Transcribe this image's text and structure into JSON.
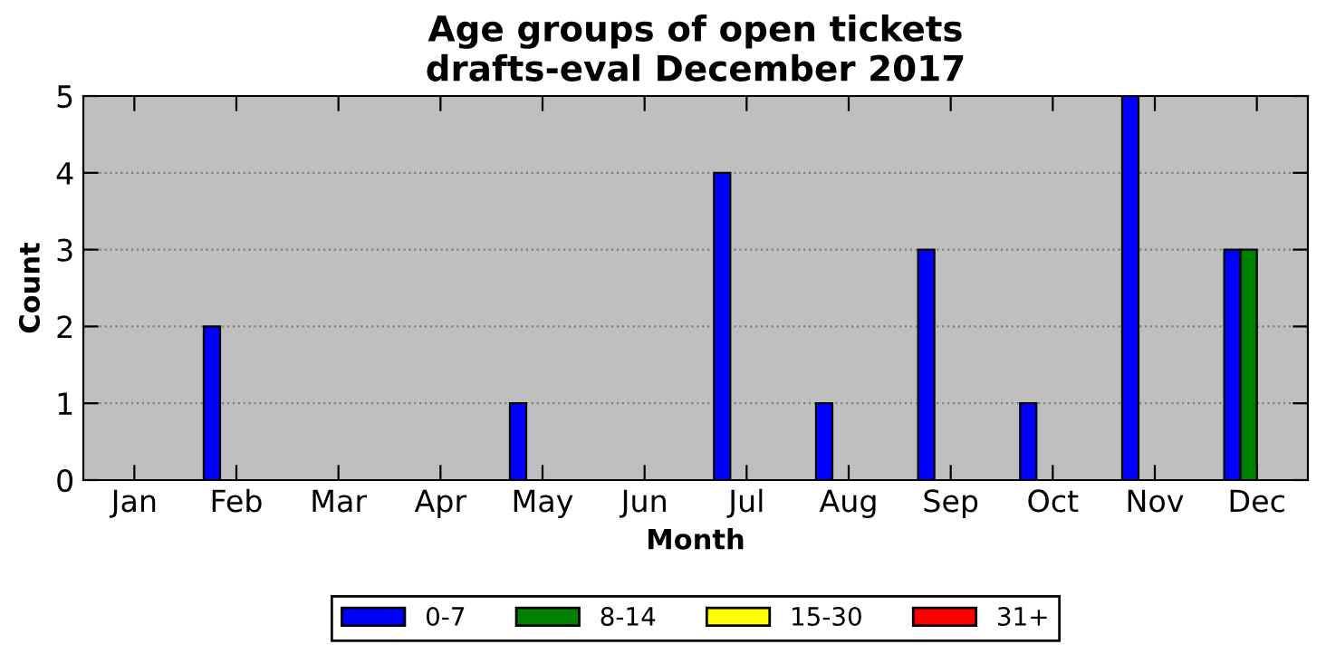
{
  "chart_data": {
    "type": "bar",
    "title": "Age groups of open tickets\ndrafts-eval December 2017",
    "xlabel": "Month",
    "ylabel": "Count",
    "categories": [
      "Jan",
      "Feb",
      "Mar",
      "Apr",
      "May",
      "Jun",
      "Jul",
      "Aug",
      "Sep",
      "Oct",
      "Nov",
      "Dec"
    ],
    "series": [
      {
        "name": "0-7",
        "color": "#0000ff",
        "values": [
          0,
          2,
          0,
          0,
          1,
          0,
          4,
          1,
          3,
          1,
          5,
          3
        ]
      },
      {
        "name": "8-14",
        "color": "#008000",
        "values": [
          0,
          0,
          0,
          0,
          0,
          0,
          0,
          0,
          0,
          0,
          0,
          3
        ]
      },
      {
        "name": "15-30",
        "color": "#ffff00",
        "values": [
          0,
          0,
          0,
          0,
          0,
          0,
          0,
          0,
          0,
          0,
          0,
          0
        ]
      },
      {
        "name": "31+",
        "color": "#ff0000",
        "values": [
          0,
          0,
          0,
          0,
          0,
          0,
          0,
          0,
          0,
          0,
          0,
          0
        ]
      }
    ],
    "ylim": [
      0,
      5
    ],
    "yticks": [
      0,
      1,
      2,
      3,
      4,
      5
    ],
    "grid": "y",
    "legend": "bottom"
  }
}
